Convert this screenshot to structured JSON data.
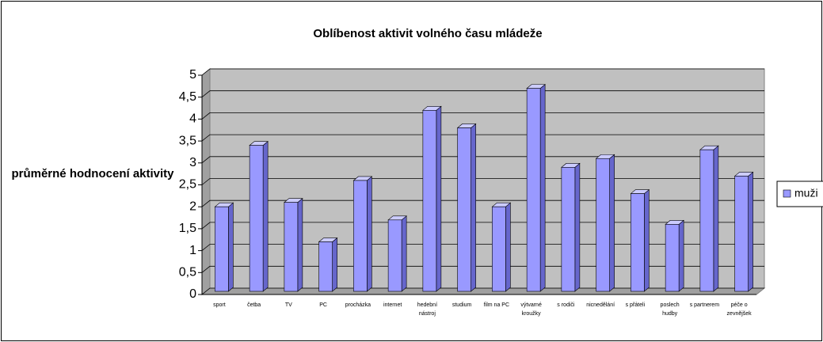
{
  "chart_data": {
    "type": "bar3d",
    "title": "Oblíbenost aktivit volného času mládeže",
    "y_label": "průměrné hodnocení aktivity",
    "categories": [
      "sport",
      "četba",
      "TV",
      "PC",
      "procházka",
      "internet",
      "hedební nástroj",
      "studium",
      "film na PC",
      "výtvarné kroužky",
      "s rodiči",
      "nicnedělání",
      "s přáteli",
      "poslech hudby",
      "s partnerem",
      "péče o zevnějšek"
    ],
    "series": [
      {
        "name": "muži",
        "color": "#9999ff",
        "values": [
          2.0,
          3.4,
          2.1,
          1.2,
          2.6,
          1.7,
          4.2,
          3.8,
          2.0,
          4.7,
          2.9,
          3.1,
          2.3,
          1.6,
          3.3,
          2.7
        ]
      }
    ],
    "ylim": [
      0,
      5
    ],
    "yticks": [
      0,
      {
        "value": 0.5,
        "label": "0,5"
      },
      1,
      {
        "value": 1.5,
        "label": "1,5"
      },
      2,
      {
        "value": 2.5,
        "label": "2,5"
      },
      3,
      {
        "value": 3.5,
        "label": "3,5"
      },
      4,
      {
        "value": 4.5,
        "label": "4,5"
      },
      5
    ],
    "grid": true,
    "legend": "right"
  }
}
